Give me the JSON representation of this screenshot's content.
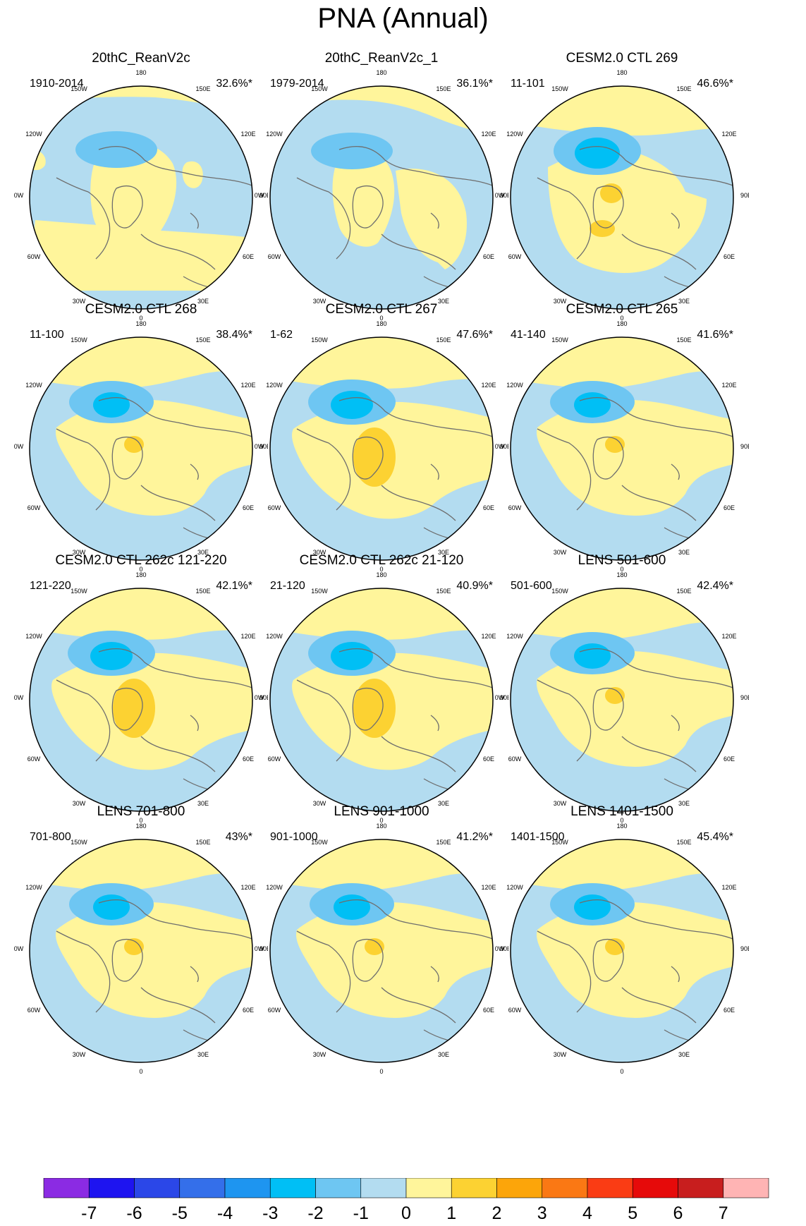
{
  "page": {
    "title": "PNA (Annual)"
  },
  "chart_data": {
    "type": "polar-contour-map",
    "title": "PNA (Annual)",
    "projection": "Northern Hemisphere polar stereographic",
    "longitude_labels": [
      "180",
      "150E",
      "120E",
      "90E",
      "60E",
      "30E",
      "0",
      "30W",
      "60W",
      "90W",
      "120W",
      "150W"
    ],
    "colorbar": {
      "tick_labels": [
        "-7",
        "-6",
        "-5",
        "-4",
        "-3",
        "-2",
        "-1",
        "0",
        "1",
        "2",
        "3",
        "4",
        "5",
        "6",
        "7"
      ],
      "colors": [
        "#8b2be3",
        "#1e14f0",
        "#2b47e8",
        "#346fea",
        "#1e95f0",
        "#00bff5",
        "#6ec6f2",
        "#b3dcf0",
        "#fff59b",
        "#fcd232",
        "#fca50a",
        "#fa7814",
        "#fa3c14",
        "#e60a0a",
        "#c81e1e",
        "#ffb4b4"
      ]
    },
    "panels": [
      {
        "title": "20thC_ReanV2c",
        "period": "1910-2014",
        "variance_explained": "32.6%*",
        "variant": "A"
      },
      {
        "title": "20thC_ReanV2c_1",
        "period": "1979-2014",
        "variance_explained": "36.1%*",
        "variant": "B"
      },
      {
        "title": "CESM2.0 CTL 269",
        "period": "11-101",
        "variance_explained": "46.6%*",
        "variant": "C"
      },
      {
        "title": "CESM2.0 CTL 268",
        "period": "11-100",
        "variance_explained": "38.4%*",
        "variant": "D"
      },
      {
        "title": "CESM2.0 CTL 267",
        "period": "1-62",
        "variance_explained": "47.6%*",
        "variant": "E"
      },
      {
        "title": "CESM2.0 CTL 265",
        "period": "41-140",
        "variance_explained": "41.6%*",
        "variant": "D"
      },
      {
        "title": "CESM2.0 CTL 262c 121-220",
        "period": "121-220",
        "variance_explained": "42.1%*",
        "variant": "E"
      },
      {
        "title": "CESM2.0 CTL 262c 21-120",
        "period": "21-120",
        "variance_explained": "40.9%*",
        "variant": "E"
      },
      {
        "title": "LENS 501-600",
        "period": "501-600",
        "variance_explained": "42.4%*",
        "variant": "D"
      },
      {
        "title": "LENS 701-800",
        "period": "701-800",
        "variance_explained": "43%*",
        "variant": "D"
      },
      {
        "title": "LENS 901-1000",
        "period": "901-1000",
        "variance_explained": "41.2%*",
        "variant": "D"
      },
      {
        "title": "LENS 1401-1500",
        "period": "1401-1500",
        "variance_explained": "45.4%*",
        "variant": "D"
      }
    ]
  }
}
